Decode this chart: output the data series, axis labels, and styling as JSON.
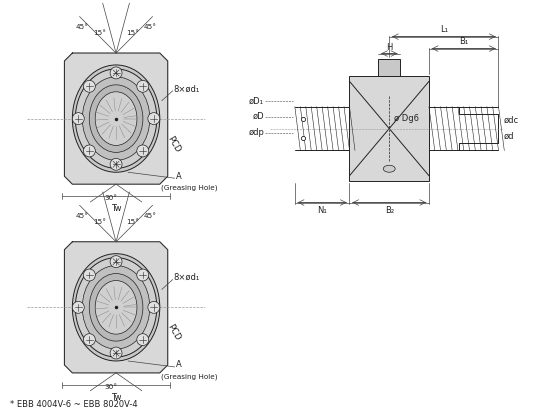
{
  "bg_color": "#ffffff",
  "lc": "#444444",
  "dc": "#222222",
  "gray_fill": "#c8c8c8",
  "gray_mid": "#b0b0b0",
  "gray_dark": "#909090",
  "gray_light": "#e0e0e0",
  "label_fontsize": 6.0,
  "footer_text": "* EBB 4004V-6 ~ EBB 8020V-4",
  "labels": {
    "L1": "L₁",
    "B1": "B₁",
    "H": "H",
    "phiDg6": "ø Dg6",
    "phiD1": "øD₁",
    "phiD": "øD",
    "phidp": "ødp",
    "phidc": "ødc",
    "phid": "ød",
    "N1": "N₁",
    "B2": "B₂",
    "PCD": "PCD",
    "A": "A",
    "greasing": "(Greasing Hole)",
    "Tw": "Tw",
    "bolts": "8×ød₁",
    "deg45": "45°",
    "deg15": "15°",
    "deg30": "30°"
  }
}
